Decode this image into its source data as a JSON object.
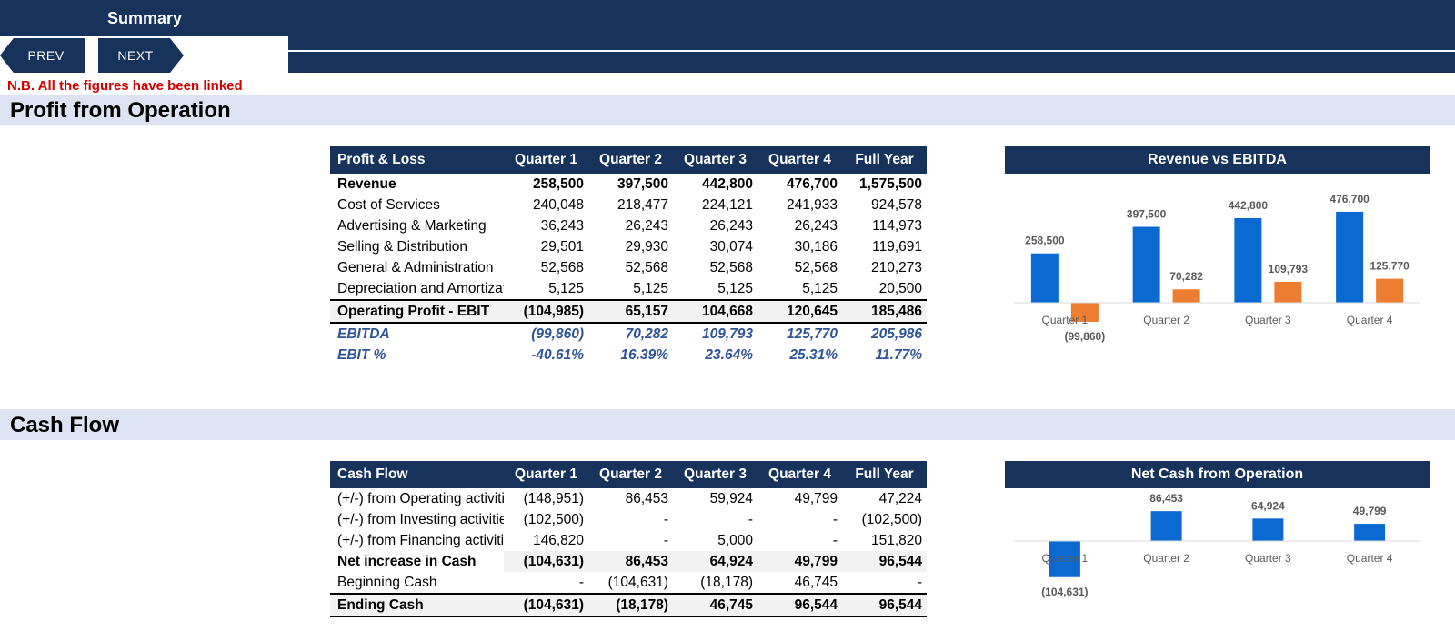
{
  "header": {
    "title": "Summary"
  },
  "nav": {
    "prev_label": "PREV",
    "next_label": "NEXT"
  },
  "note": "N.B. All the figures have been linked",
  "sections": {
    "profit": "Profit from Operation",
    "cash": "Cash Flow"
  },
  "pl_table": {
    "headers": [
      "Profit & Loss",
      "Quarter 1",
      "Quarter 2",
      "Quarter 3",
      "Quarter 4",
      "Full Year"
    ],
    "rows": [
      {
        "label": "Revenue",
        "style": "bold",
        "values": [
          "258,500",
          "397,500",
          "442,800",
          "476,700",
          "1,575,500"
        ]
      },
      {
        "label": "Cost of Services",
        "style": "",
        "values": [
          "240,048",
          "218,477",
          "224,121",
          "241,933",
          "924,578"
        ]
      },
      {
        "label": "Advertising & Marketing",
        "style": "",
        "values": [
          "36,243",
          "26,243",
          "26,243",
          "26,243",
          "114,973"
        ]
      },
      {
        "label": "Selling & Distribution",
        "style": "",
        "values": [
          "29,501",
          "29,930",
          "30,074",
          "30,186",
          "119,691"
        ]
      },
      {
        "label": "General & Administration",
        "style": "",
        "values": [
          "52,568",
          "52,568",
          "52,568",
          "52,568",
          "210,273"
        ]
      },
      {
        "label": "Depreciation and Amortization",
        "style": "",
        "values": [
          "5,125",
          "5,125",
          "5,125",
          "5,125",
          "20,500"
        ]
      },
      {
        "label": "Operating Profit - EBIT",
        "style": "total",
        "values": [
          "(104,985)",
          "65,157",
          "104,668",
          "120,645",
          "185,486"
        ]
      },
      {
        "label": "EBITDA",
        "style": "ital",
        "values": [
          "(99,860)",
          "70,282",
          "109,793",
          "125,770",
          "205,986"
        ]
      },
      {
        "label": "EBIT %",
        "style": "ital",
        "values": [
          "-40.61%",
          "16.39%",
          "23.64%",
          "25.31%",
          "11.77%"
        ]
      }
    ]
  },
  "cf_table": {
    "headers": [
      "Cash Flow",
      "Quarter 1",
      "Quarter 2",
      "Quarter 3",
      "Quarter 4",
      "Full Year"
    ],
    "rows": [
      {
        "label": "(+/-) from Operating activities",
        "style": "",
        "values": [
          "(148,951)",
          "86,453",
          "59,924",
          "49,799",
          "47,224"
        ]
      },
      {
        "label": "(+/-) from Investing activities",
        "style": "",
        "values": [
          "(102,500)",
          "-",
          "-",
          "-",
          "(102,500)"
        ]
      },
      {
        "label": "(+/-) from Financing activities",
        "style": "",
        "values": [
          "146,820",
          "-",
          "5,000",
          "-",
          "151,820"
        ]
      },
      {
        "label": "Net increase in Cash",
        "style": "bold shade",
        "values": [
          "(104,631)",
          "86,453",
          "64,924",
          "49,799",
          "96,544"
        ]
      },
      {
        "label": "Beginning Cash",
        "style": "",
        "values": [
          "-",
          "(104,631)",
          "(18,178)",
          "46,745",
          "-"
        ]
      },
      {
        "label": "Ending Cash",
        "style": "endrow",
        "values": [
          "(104,631)",
          "(18,178)",
          "46,745",
          "96,544",
          "96,544"
        ]
      }
    ]
  },
  "chart_data": [
    {
      "type": "bar",
      "title": "Revenue vs EBITDA",
      "categories": [
        "Quarter 1",
        "Quarter 2",
        "Quarter 3",
        "Quarter 4"
      ],
      "series": [
        {
          "values": [
            258500,
            397500,
            442800,
            476700
          ],
          "color": "#0a6ad1",
          "labels": [
            "258,500",
            "397,500",
            "442,800",
            "476,700"
          ]
        },
        {
          "values": [
            -99860,
            70282,
            109793,
            125770
          ],
          "color": "#ed7d31",
          "labels": [
            "(99,860)",
            "70,282",
            "109,793",
            "125,770"
          ]
        }
      ],
      "legend": "none",
      "grid": false
    },
    {
      "type": "bar",
      "title": "Net Cash from Operation",
      "categories": [
        "Quarter 1",
        "Quarter 2",
        "Quarter 3",
        "Quarter 4"
      ],
      "series": [
        {
          "values": [
            -104631,
            86453,
            64924,
            49799
          ],
          "color": "#0a6ad1",
          "labels": [
            "(104,631)",
            "86,453",
            "64,924",
            "49,799"
          ]
        }
      ],
      "legend": "none",
      "grid": false
    }
  ]
}
